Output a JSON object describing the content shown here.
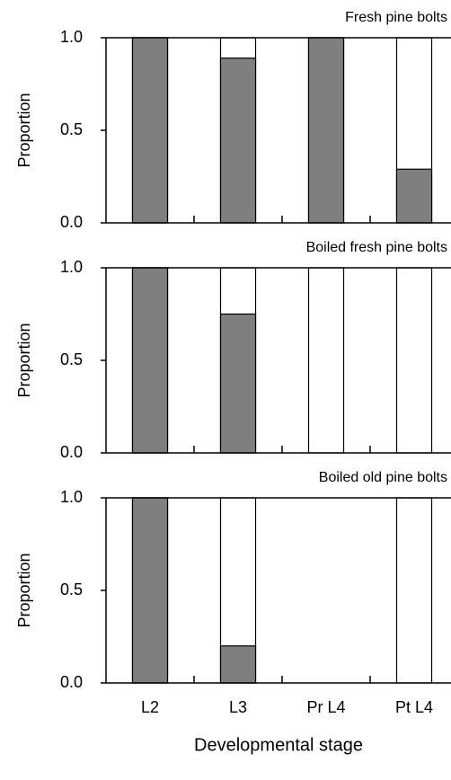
{
  "chart_data": [
    {
      "type": "bar",
      "title": "Fresh pine bolts",
      "ylabel": "Proportion",
      "values": [
        1.0,
        0.89,
        1.0,
        0.29
      ],
      "color": "#7f7f7f",
      "ylim": [
        0,
        1
      ],
      "yticks": [
        {
          "value": 0,
          "label": "0.0"
        },
        0.5,
        {
          "value": 1,
          "label": "1.0"
        }
      ]
    },
    {
      "type": "bar",
      "title": "Boiled fresh pine bolts",
      "ylabel": "Proportion",
      "values": [
        1.0,
        0.75,
        0,
        0
      ],
      "color": "#7f7f7f",
      "ylim": [
        0,
        1
      ],
      "yticks": [
        {
          "value": 0,
          "label": "0.0"
        },
        0.5,
        {
          "value": 1,
          "label": "1.0"
        }
      ]
    },
    {
      "type": "bar",
      "title": "Boiled old pine bolts",
      "ylabel": "Proportion",
      "xlabel": "Developmental stage",
      "categories": [
        "L2",
        "L3",
        "Pr L4",
        "Pt L4"
      ],
      "values": [
        1.0,
        0.2,
        null,
        0
      ],
      "color": "#7f7f7f",
      "ylim": [
        0,
        1
      ],
      "yticks": [
        {
          "value": 0,
          "label": "0.0"
        },
        0.5,
        {
          "value": 1,
          "label": "1.0"
        }
      ]
    }
  ]
}
